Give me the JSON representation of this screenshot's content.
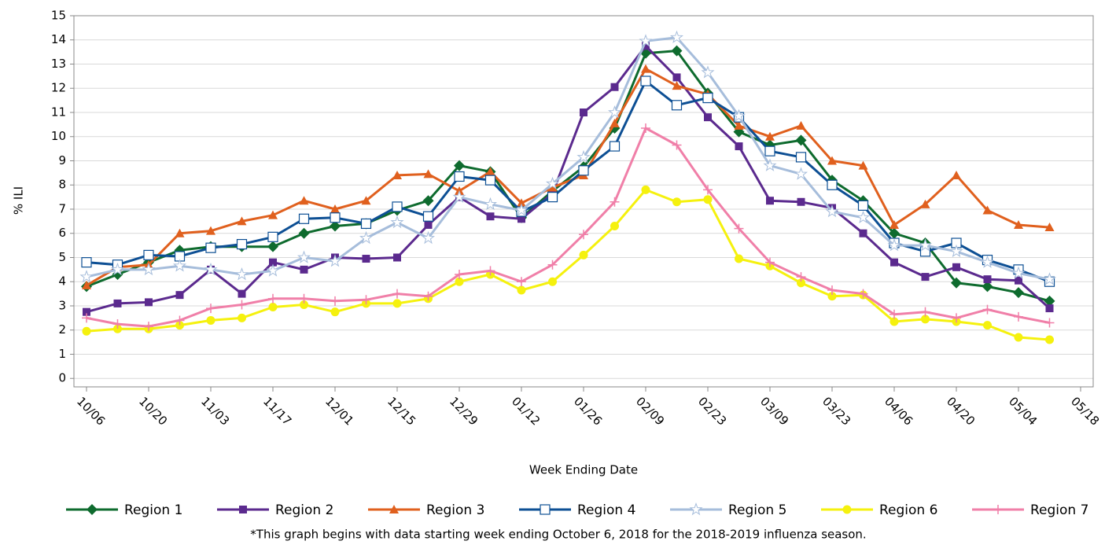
{
  "chart_data": {
    "type": "line",
    "y_label": "% ILI",
    "x_label": "Week Ending Date",
    "note": "*This graph begins with data starting week ending October 6, 2018 for the 2018-2019 influenza season.",
    "categories": [
      "10/06",
      null,
      "10/20",
      null,
      "11/03",
      null,
      "11/17",
      null,
      "12/01",
      null,
      "12/15",
      null,
      "12/29",
      null,
      "01/12",
      null,
      "01/26",
      null,
      "02/09",
      null,
      "02/23",
      null,
      "03/09",
      null,
      "03/23",
      null,
      "04/06",
      null,
      "04/20",
      null,
      "05/04",
      null,
      "05/18"
    ],
    "ylim": [
      -0.35,
      15
    ],
    "yticks": [
      0,
      1,
      2,
      3,
      4,
      5,
      6,
      7,
      8,
      9,
      10,
      11,
      12,
      13,
      14,
      15
    ],
    "grid": true,
    "series": [
      {
        "name": "Region 1",
        "color": "#0e6b2e",
        "marker": "diamond",
        "values": [
          3.8,
          4.3,
          4.8,
          5.3,
          5.45,
          5.45,
          5.45,
          6.0,
          6.3,
          6.4,
          6.95,
          7.35,
          8.8,
          8.55,
          6.65,
          7.75,
          8.75,
          10.35,
          13.45,
          13.55,
          11.8,
          10.2,
          9.65,
          9.85,
          8.2,
          7.35,
          6.0,
          5.6,
          3.95,
          3.8,
          3.55,
          3.2,
          null
        ]
      },
      {
        "name": "Region 2",
        "color": "#5b2a8e",
        "marker": "square",
        "values": [
          2.75,
          3.1,
          3.15,
          3.45,
          4.5,
          3.5,
          4.8,
          4.5,
          5.0,
          4.95,
          5.0,
          6.35,
          7.5,
          6.7,
          6.6,
          7.65,
          11.0,
          12.05,
          13.75,
          12.45,
          10.8,
          9.6,
          7.35,
          7.3,
          7.05,
          6.0,
          4.8,
          4.2,
          4.6,
          4.1,
          4.05,
          2.9,
          null
        ]
      },
      {
        "name": "Region 3",
        "color": "#e0601e",
        "marker": "triangle",
        "values": [
          3.85,
          4.6,
          4.7,
          6.0,
          6.1,
          6.5,
          6.75,
          7.35,
          7.0,
          7.35,
          8.4,
          8.45,
          7.75,
          8.55,
          7.25,
          7.9,
          8.4,
          10.55,
          12.8,
          12.1,
          11.75,
          10.45,
          10.0,
          10.45,
          9.0,
          8.8,
          6.35,
          7.2,
          8.4,
          6.95,
          6.35,
          6.25,
          null
        ]
      },
      {
        "name": "Region 4",
        "color": "#0d4f94",
        "marker": "open-square",
        "values": [
          4.8,
          4.7,
          5.1,
          5.05,
          5.4,
          5.55,
          5.85,
          6.6,
          6.65,
          6.4,
          7.1,
          6.7,
          8.35,
          8.2,
          6.9,
          7.5,
          8.6,
          9.6,
          12.3,
          11.3,
          11.6,
          10.8,
          9.4,
          9.15,
          8.0,
          7.15,
          5.6,
          5.25,
          5.6,
          4.9,
          4.5,
          4.0,
          null
        ]
      },
      {
        "name": "Region 5",
        "color": "#a6bddb",
        "marker": "star",
        "values": [
          4.2,
          4.5,
          4.5,
          4.65,
          4.5,
          4.3,
          4.45,
          5.0,
          4.85,
          5.8,
          6.45,
          5.8,
          7.5,
          7.2,
          6.95,
          8.05,
          9.15,
          11.0,
          13.95,
          14.1,
          12.65,
          10.85,
          8.8,
          8.45,
          6.9,
          6.65,
          5.5,
          5.5,
          5.25,
          4.8,
          4.35,
          4.1,
          null
        ]
      },
      {
        "name": "Region 6",
        "color": "#f5f10e",
        "marker": "circle",
        "values": [
          1.95,
          2.05,
          2.05,
          2.2,
          2.4,
          2.5,
          2.95,
          3.05,
          2.75,
          3.1,
          3.1,
          3.3,
          4.0,
          4.3,
          3.65,
          4.0,
          5.1,
          6.3,
          7.8,
          7.3,
          7.4,
          4.95,
          4.65,
          3.95,
          3.4,
          3.45,
          2.35,
          2.45,
          2.35,
          2.2,
          1.7,
          1.6,
          null
        ]
      },
      {
        "name": "Region 7",
        "color": "#f07fa8",
        "marker": "plus",
        "values": [
          2.5,
          2.25,
          2.15,
          2.4,
          2.9,
          3.05,
          3.3,
          3.3,
          3.2,
          3.25,
          3.5,
          3.4,
          4.3,
          4.45,
          4.0,
          4.7,
          5.95,
          7.3,
          10.35,
          9.65,
          7.8,
          6.2,
          4.8,
          4.2,
          3.65,
          3.5,
          2.65,
          2.75,
          2.5,
          2.85,
          2.55,
          2.3,
          null
        ]
      }
    ]
  }
}
